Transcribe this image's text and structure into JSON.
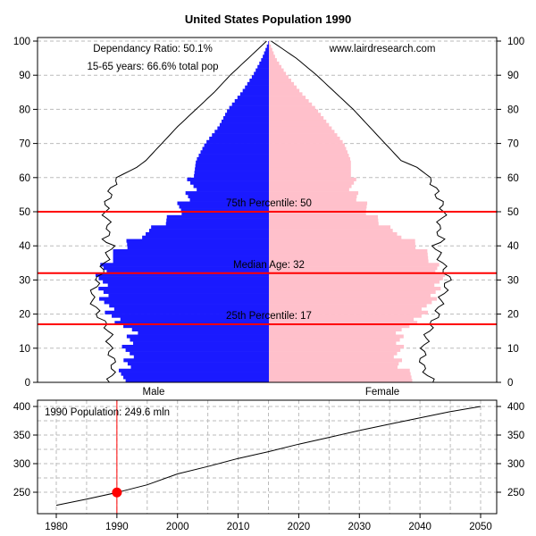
{
  "chart_data": [
    {
      "type": "bar",
      "subtype": "population-pyramid",
      "title": "United States Population 1990",
      "annotations": {
        "dependancy_ratio": "Dependancy Ratio: 50.1%",
        "working_age": "15-65 years: 66.6% total pop",
        "source": "www.lairdresearch.com"
      },
      "xlabels": [
        "Male",
        "Female"
      ],
      "ylim": [
        0,
        100
      ],
      "yticks": [
        "0",
        "10",
        "20",
        "30",
        "40",
        "50",
        "60",
        "70",
        "80",
        "90",
        "100"
      ],
      "grid": true,
      "reference_lines": [
        {
          "label": "75th Percentile: 50",
          "value": 50
        },
        {
          "label": "Median Age: 32",
          "value": 32
        },
        {
          "label": "25th Percentile: 17",
          "value": 17
        }
      ],
      "colors": {
        "male": "#1a1aff",
        "female": "#ffc0cb",
        "reference": "#ff0000",
        "outline": "#000000",
        "grid": "#bbbbbb"
      },
      "series": [
        {
          "name": "Male",
          "ages": [
            0,
            5,
            10,
            15,
            20,
            25,
            30,
            35,
            40,
            42,
            45,
            50,
            55,
            60,
            65,
            70,
            75,
            80,
            85,
            90,
            95,
            100
          ],
          "values": [
            66,
            62,
            62,
            60,
            70,
            72,
            74,
            72,
            63,
            60,
            50,
            40,
            35,
            33,
            32,
            28,
            22,
            18,
            12,
            7,
            3,
            0
          ]
        },
        {
          "name": "Female",
          "ages": [
            0,
            5,
            10,
            15,
            20,
            25,
            30,
            35,
            40,
            42,
            45,
            50,
            55,
            60,
            65,
            70,
            75,
            80,
            85,
            90,
            95,
            100
          ],
          "values": [
            66,
            57,
            57,
            58,
            68,
            72,
            76,
            73,
            65,
            62,
            52,
            44,
            38,
            36,
            36,
            33,
            27,
            21,
            14,
            8,
            3,
            0
          ]
        }
      ],
      "outline_series": [
        {
          "name": "Male projection",
          "ages": [
            0,
            5,
            10,
            15,
            20,
            25,
            30,
            35,
            40,
            42,
            45,
            50,
            55,
            60,
            63,
            65,
            70,
            75,
            80,
            85,
            90,
            95,
            100
          ],
          "values": [
            70,
            68,
            70,
            70,
            75,
            78,
            75,
            72,
            69,
            72,
            70,
            72,
            70,
            67,
            58,
            54,
            47,
            40,
            32,
            24,
            17,
            9,
            1
          ]
        },
        {
          "name": "Female projection",
          "ages": [
            0,
            5,
            10,
            15,
            20,
            25,
            30,
            35,
            40,
            42,
            45,
            50,
            55,
            60,
            63,
            65,
            70,
            75,
            80,
            85,
            90,
            95,
            100
          ],
          "values": [
            72,
            67,
            68,
            70,
            74,
            76,
            79,
            76,
            73,
            76,
            74,
            77,
            74,
            71,
            65,
            58,
            51,
            44,
            37,
            29,
            21,
            12,
            1
          ]
        }
      ]
    },
    {
      "type": "line",
      "title": "",
      "annotation": "1990 Population: 249.6 mln",
      "x": [
        1980,
        1985,
        1990,
        1995,
        2000,
        2005,
        2010,
        2015,
        2020,
        2025,
        2030,
        2035,
        2040,
        2045,
        2050
      ],
      "y": [
        227.2,
        237.9,
        249.6,
        263,
        282,
        295,
        309,
        321,
        334,
        346,
        358,
        369,
        380,
        391,
        400
      ],
      "highlight": {
        "x": 1990,
        "y": 249.6
      },
      "xlim": [
        1977,
        2053
      ],
      "ylim": [
        220,
        405
      ],
      "xticks": [
        "1980",
        "1990",
        "2000",
        "2010",
        "2020",
        "2030",
        "2040",
        "2050"
      ],
      "yticks": [
        "250",
        "300",
        "350",
        "400"
      ],
      "grid": true
    }
  ]
}
